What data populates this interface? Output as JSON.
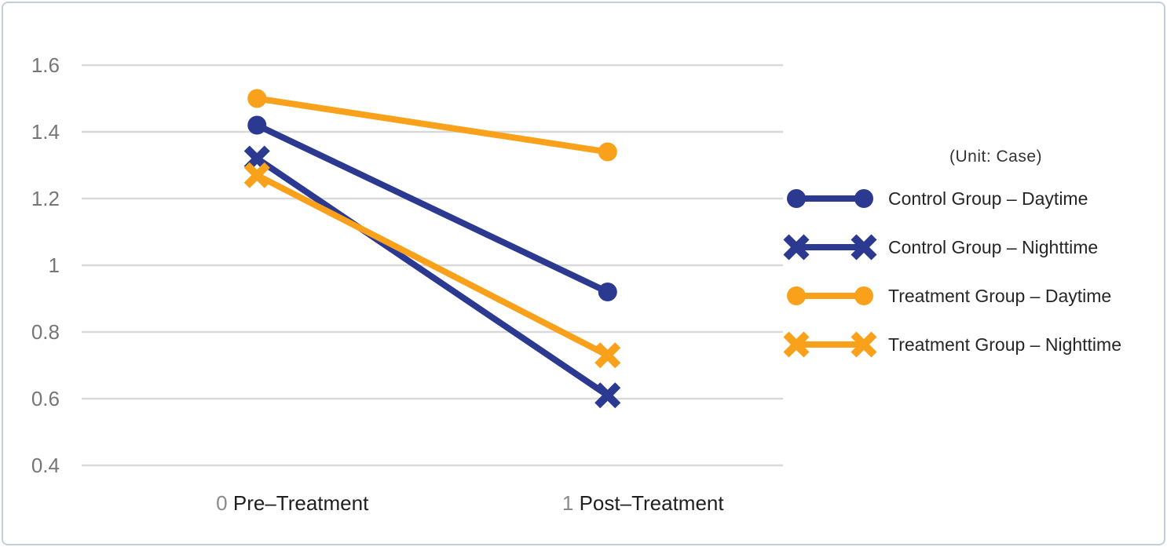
{
  "chart_data": {
    "type": "line",
    "title": "",
    "unit_label": "(Unit: Case)",
    "grid": true,
    "legend_position": "right",
    "x_axis": {
      "xlim": [
        -0.5,
        1.5
      ],
      "ticks": [
        {
          "value": 0,
          "tick_label": "0",
          "annotation": "Pre–Treatment"
        },
        {
          "value": 1,
          "tick_label": "1",
          "annotation": "Post–Treatment"
        }
      ]
    },
    "y_axis": {
      "ylim": [
        0.4,
        1.6
      ],
      "ticks": [
        {
          "label": "1.6",
          "value": 1.6
        },
        {
          "label": "1.4",
          "value": 1.4
        },
        {
          "label": "1.2",
          "value": 1.2
        },
        {
          "label": "1",
          "value": 1.0
        },
        {
          "label": "0.8",
          "value": 0.8
        },
        {
          "label": "0.6",
          "value": 0.6
        },
        {
          "label": "0.4",
          "value": 0.4
        }
      ]
    },
    "series": [
      {
        "name": "Control Group – Daytime",
        "marker": "circle",
        "color": "#2B3990",
        "values": [
          1.42,
          0.92
        ]
      },
      {
        "name": "Control Group – Nighttime",
        "marker": "x",
        "color": "#2B3990",
        "values": [
          1.32,
          0.61
        ]
      },
      {
        "name": "Treatment Group – Daytime",
        "marker": "circle",
        "color": "#F9A11B",
        "values": [
          1.5,
          1.34
        ]
      },
      {
        "name": "Treatment Group – Nighttime",
        "marker": "x",
        "color": "#F9A11B",
        "values": [
          1.27,
          0.73
        ]
      }
    ]
  },
  "style": {
    "gridline_color": "#D9D9D9",
    "y_tick_color": "#767676",
    "x_tick_number_color": "#8A8A8A",
    "x_annotation_color": "#1F1F1F",
    "legend_text_color": "#262626",
    "border_color": "#C3CEDC",
    "background_color": "#FFFFFF"
  }
}
